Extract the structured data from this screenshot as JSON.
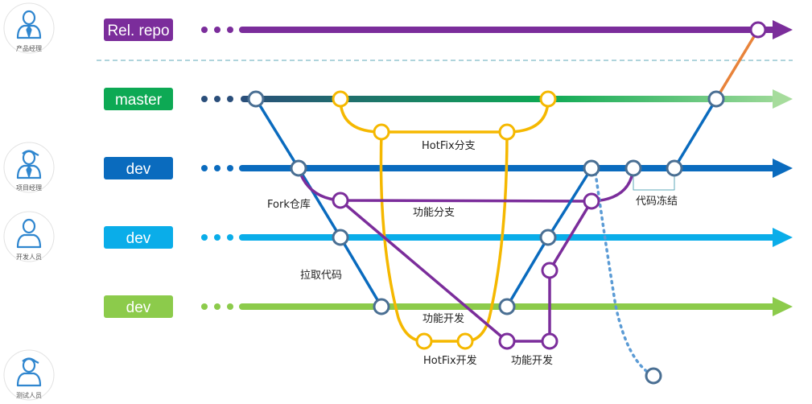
{
  "roles": [
    {
      "label": "产品经理",
      "icon": "person-tie-icon"
    },
    {
      "label": "项目经理",
      "icon": "person-cap-tie-icon"
    },
    {
      "label": "开发人员",
      "icon": "person-icon"
    },
    {
      "label": "测试人员",
      "icon": "person-cap-icon"
    }
  ],
  "branches": [
    {
      "label": "Rel. repo",
      "color": "#7B2D9B"
    },
    {
      "label": "master",
      "color": "#0DA954"
    },
    {
      "label": "dev",
      "color": "#0A6BBE"
    },
    {
      "label": "dev",
      "color": "#0AADE9"
    },
    {
      "label": "dev",
      "color": "#8CCB4B"
    }
  ],
  "annotations": {
    "fork": "Fork仓库",
    "pull": "拉取代码",
    "hotfix_branch": "HotFix分支",
    "feature_branch": "功能分支",
    "code_freeze": "代码冻结",
    "feature_dev_1": "功能开发",
    "hotfix_dev": "HotFix开发",
    "feature_dev_2": "功能开发"
  },
  "colors": {
    "commit_stroke": "#4A6F93",
    "hotfix": "#F5B800",
    "feature": "#7B2D9B",
    "fork_line": "#0A6BBE",
    "release_link": "#E8833A",
    "test_link": "#5B9BD5",
    "divider": "#5FA8B8"
  }
}
